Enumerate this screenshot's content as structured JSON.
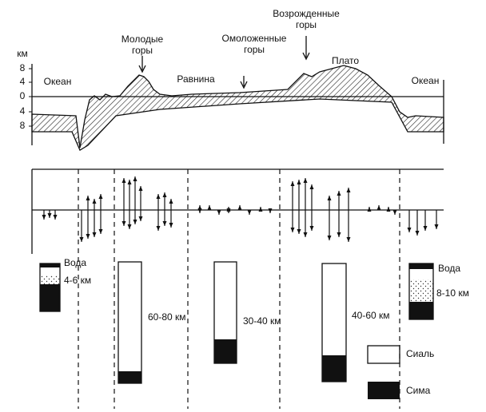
{
  "axis": {
    "unit": "км",
    "ticks": [
      "8",
      "4",
      "0",
      "4",
      "8"
    ]
  },
  "profile_labels": [
    [
      "Океан"
    ],
    [
      "Молодые",
      "горы"
    ],
    [
      "Равнина"
    ],
    [
      "Омоложенные",
      "горы"
    ],
    [
      "Возрожденные",
      "горы"
    ],
    [
      "Плато"
    ],
    [
      "Океан"
    ]
  ],
  "crust_labels": [
    "Вода",
    "4-6 км",
    "60-80 км",
    "30-40 км",
    "40-60 км",
    "Вода",
    "8-10 км"
  ],
  "legend": [
    "Сиаль",
    "Сима"
  ]
}
